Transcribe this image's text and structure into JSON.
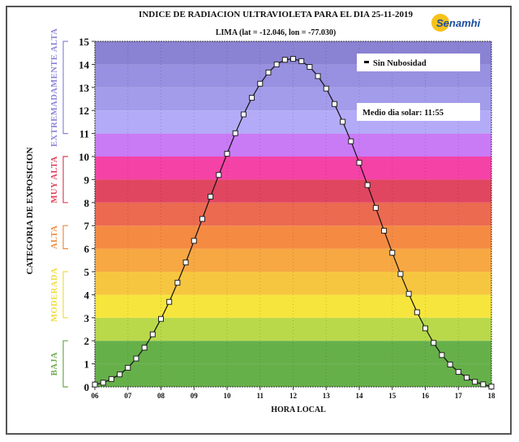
{
  "logo": {
    "text": "Senamhi"
  },
  "chart_data": {
    "type": "line",
    "title": "INDICE DE RADIACION ULTRAVIOLETA PARA EL DIA 25-11-2019",
    "subtitle": "LIMA (lat = -12.046, lon = -77.030)",
    "xlabel": "HORA LOCAL",
    "ylabel": "CATEGORIA DE EXPOSICION",
    "xlim": [
      6,
      18
    ],
    "ylim": [
      0,
      15
    ],
    "x_ticks": [
      "06",
      "07",
      "08",
      "09",
      "10",
      "11",
      "12",
      "13",
      "14",
      "15",
      "16",
      "17",
      "18"
    ],
    "y_ticks": [
      "0",
      "1",
      "2",
      "3",
      "4",
      "5",
      "6",
      "7",
      "8",
      "9",
      "10",
      "11",
      "12",
      "13",
      "14",
      "15"
    ],
    "legend": {
      "position": "top-right",
      "entries": [
        "Sin Nubosidad"
      ]
    },
    "annotation": "Medio dia solar: 11:55",
    "categories": [
      {
        "label": "BAJA",
        "range": [
          0,
          2
        ],
        "color": "#6aa84f"
      },
      {
        "label": "MODERADA",
        "range": [
          3,
          5
        ],
        "color": "#f2dc3a"
      },
      {
        "label": "ALTA",
        "range": [
          6,
          7
        ],
        "color": "#f08a40"
      },
      {
        "label": "MUY ALTA",
        "range": [
          8,
          10
        ],
        "color": "#e0405a"
      },
      {
        "label": "EXTREMADAMENTE ALTA",
        "range": [
          11,
          15
        ],
        "color": "#8a84d8"
      }
    ],
    "bands": [
      "#66b04a",
      "#66b04a",
      "#b9d94b",
      "#f6e53c",
      "#f7c640",
      "#f7a843",
      "#f58b42",
      "#ec6a50",
      "#e04660",
      "#f542a6",
      "#c97bf6",
      "#b3abf7",
      "#a39ceb",
      "#9890e0",
      "#8a82d2"
    ],
    "series": [
      {
        "name": "Sin Nubosidad",
        "x": [
          6,
          6.25,
          6.5,
          6.75,
          7,
          7.25,
          7.5,
          7.75,
          8,
          8.25,
          8.5,
          8.75,
          9,
          9.25,
          9.5,
          9.75,
          10,
          10.25,
          10.5,
          10.75,
          11,
          11.25,
          11.5,
          11.75,
          12,
          12.25,
          12.5,
          12.75,
          13,
          13.25,
          13.5,
          13.75,
          14,
          14.25,
          14.5,
          14.75,
          15,
          15.25,
          15.5,
          15.75,
          16,
          16.25,
          16.5,
          16.75,
          17,
          17.25,
          17.5,
          17.75,
          18
        ],
        "y": [
          0.1,
          0.18,
          0.34,
          0.54,
          0.83,
          1.23,
          1.7,
          2.28,
          2.95,
          3.69,
          4.52,
          5.4,
          6.34,
          7.29,
          8.26,
          9.2,
          10.12,
          11.01,
          11.83,
          12.55,
          13.16,
          13.65,
          14.0,
          14.2,
          14.24,
          14.14,
          13.89,
          13.49,
          12.95,
          12.28,
          11.51,
          10.66,
          9.73,
          8.76,
          7.77,
          6.78,
          5.82,
          4.9,
          4.04,
          3.24,
          2.54,
          1.91,
          1.38,
          0.97,
          0.65,
          0.4,
          0.22,
          0.11,
          0.01
        ]
      }
    ]
  }
}
